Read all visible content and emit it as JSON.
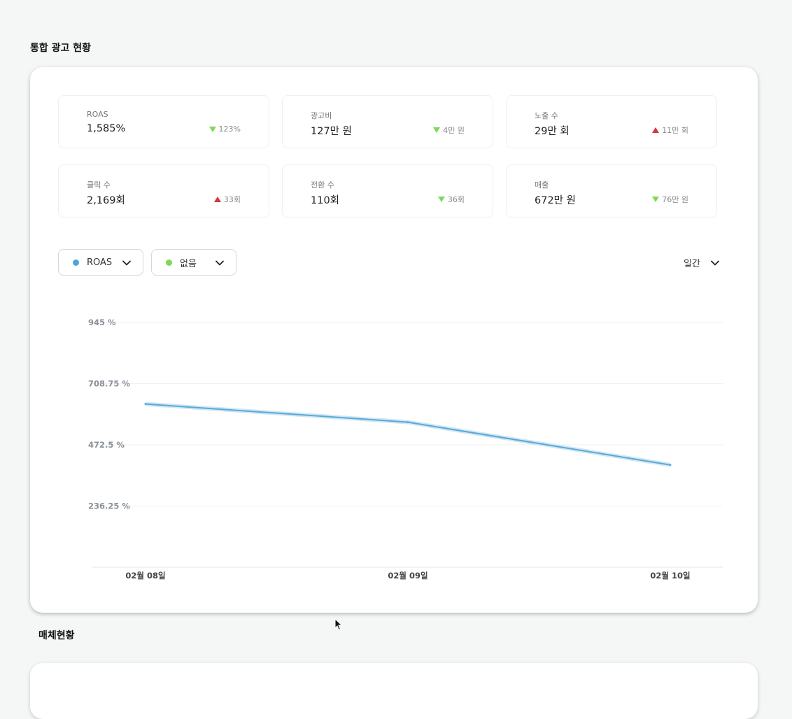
{
  "sections": {
    "main_title": "통합 광고 현황",
    "media_title": "매체현황"
  },
  "kpis": [
    {
      "label": "ROAS",
      "value": "1,585%",
      "change": "123%",
      "direction": "down"
    },
    {
      "label": "광고비",
      "value": "127만 원",
      "change": "4만 원",
      "direction": "down"
    },
    {
      "label": "노출 수",
      "value": "29만 회",
      "change": "11만 회",
      "direction": "up"
    },
    {
      "label": "클릭 수",
      "value": "2,169회",
      "change": "33회",
      "direction": "up"
    },
    {
      "label": "전환 수",
      "value": "110회",
      "change": "36회",
      "direction": "down"
    },
    {
      "label": "매출",
      "value": "672만 원",
      "change": "76만 원",
      "direction": "down"
    }
  ],
  "controls": {
    "metric1": {
      "label": "ROAS",
      "dot_color": "#4fa3e0"
    },
    "metric2": {
      "label": "없음",
      "dot_color": "#7ed957"
    },
    "period": "일간"
  },
  "colors": {
    "up": "#d9343f",
    "down": "#7ed957",
    "line": "#5ba9d8"
  },
  "chart_data": {
    "type": "line",
    "x": [
      "02월 08일",
      "02월 09일",
      "02월 10일"
    ],
    "series": [
      {
        "name": "ROAS",
        "values": [
          630,
          560,
          395
        ]
      }
    ],
    "yticks": [
      "945 %",
      "708.75 %",
      "472.5 %",
      "236.25 %"
    ],
    "ylim": [
      0,
      945
    ],
    "grid": true
  }
}
